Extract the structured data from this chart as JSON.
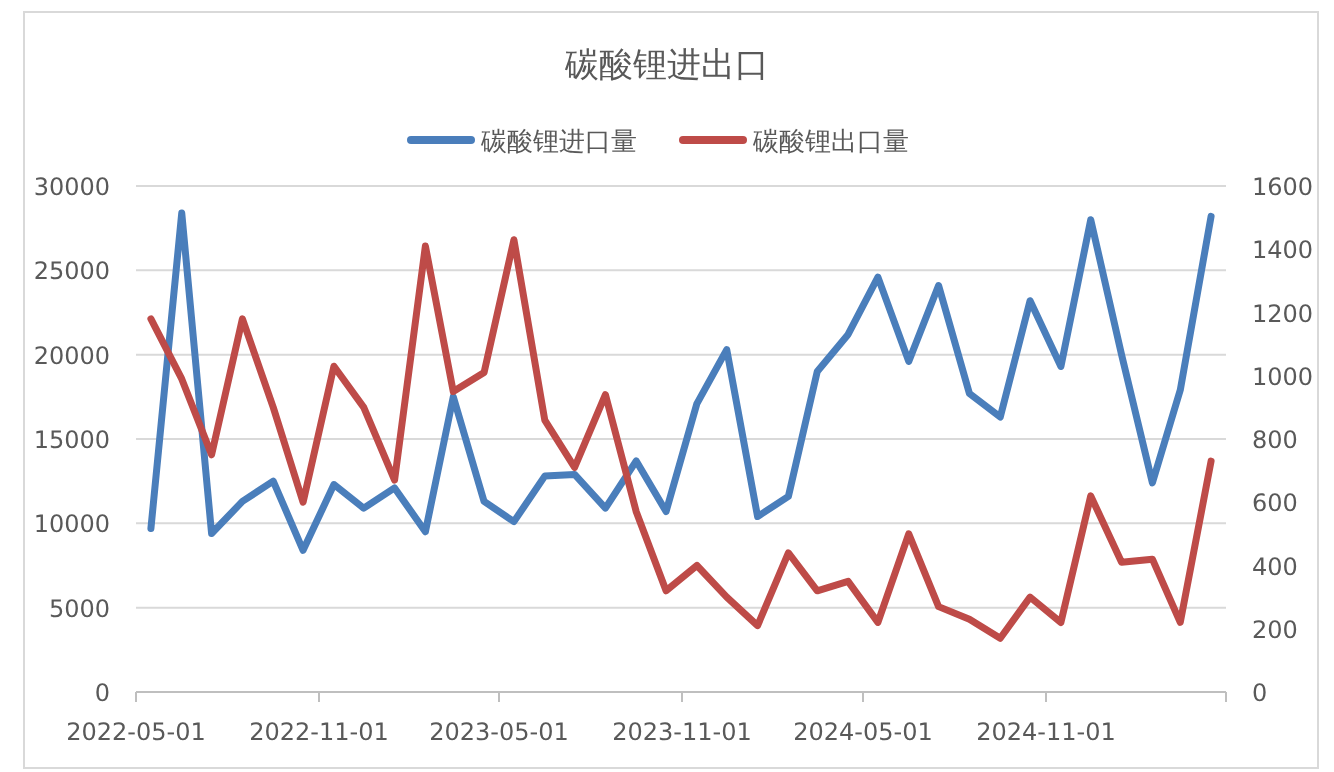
{
  "chart_data": {
    "type": "line",
    "title": "碳酸锂进出口",
    "legend": "top",
    "grid": "y",
    "marker": "none",
    "line_style": "solid",
    "x": [
      "2022-05-16",
      "2022-06-16",
      "2022-07-16",
      "2022-08-16",
      "2022-09-16",
      "2022-10-16",
      "2022-11-16",
      "2022-12-16",
      "2023-01-16",
      "2023-02-16",
      "2023-03-16",
      "2023-04-16",
      "2023-05-16",
      "2023-06-16",
      "2023-07-16",
      "2023-08-16",
      "2023-09-16",
      "2023-10-16",
      "2023-11-16",
      "2023-12-16",
      "2024-01-16",
      "2024-02-16",
      "2024-03-16",
      "2024-04-16",
      "2024-05-16",
      "2024-06-16",
      "2024-07-16",
      "2024-08-16",
      "2024-09-16",
      "2024-10-16",
      "2024-11-16",
      "2024-12-16",
      "2025-01-16",
      "2025-02-16",
      "2025-03-16",
      "2025-04-16"
    ],
    "xlim": [
      "2022-05-01",
      "2025-05-01"
    ],
    "xticks": [
      "2022-05-01",
      "2022-11-01",
      "2023-05-01",
      "2023-11-01",
      "2024-05-01",
      "2024-11-01",
      {
        "value": "2025-05-01",
        "label": null
      }
    ],
    "ylim": [
      0,
      30000
    ],
    "yticks": [
      0,
      5000,
      10000,
      15000,
      20000,
      25000,
      30000
    ],
    "y2lim": [
      0,
      1600
    ],
    "y2ticks": [
      0,
      200,
      400,
      600,
      800,
      1000,
      1200,
      1400,
      1600
    ],
    "series": [
      {
        "name": "碳酸锂进口量",
        "color": "#4a7ebb",
        "values": [
          9700,
          28400,
          9400,
          11300,
          12500,
          8400,
          12300,
          10900,
          12100,
          9500,
          17500,
          11300,
          10100,
          12800,
          12900,
          10900,
          13700,
          10700,
          17100,
          20300,
          10400,
          11600,
          19000,
          21200,
          24600,
          19600,
          24100,
          17700,
          16300,
          23200,
          19300,
          28000,
          20000,
          12400,
          17900,
          28200
        ]
      },
      {
        "name": "碳酸锂出口量",
        "color": "#be4b48",
        "axis": "y2",
        "values": [
          1180,
          990,
          750,
          1180,
          900,
          600,
          1030,
          900,
          670,
          1410,
          950,
          1010,
          1430,
          860,
          710,
          940,
          570,
          320,
          400,
          300,
          210,
          440,
          320,
          350,
          220,
          500,
          270,
          230,
          170,
          300,
          220,
          620,
          410,
          420,
          220,
          730
        ]
      }
    ]
  }
}
